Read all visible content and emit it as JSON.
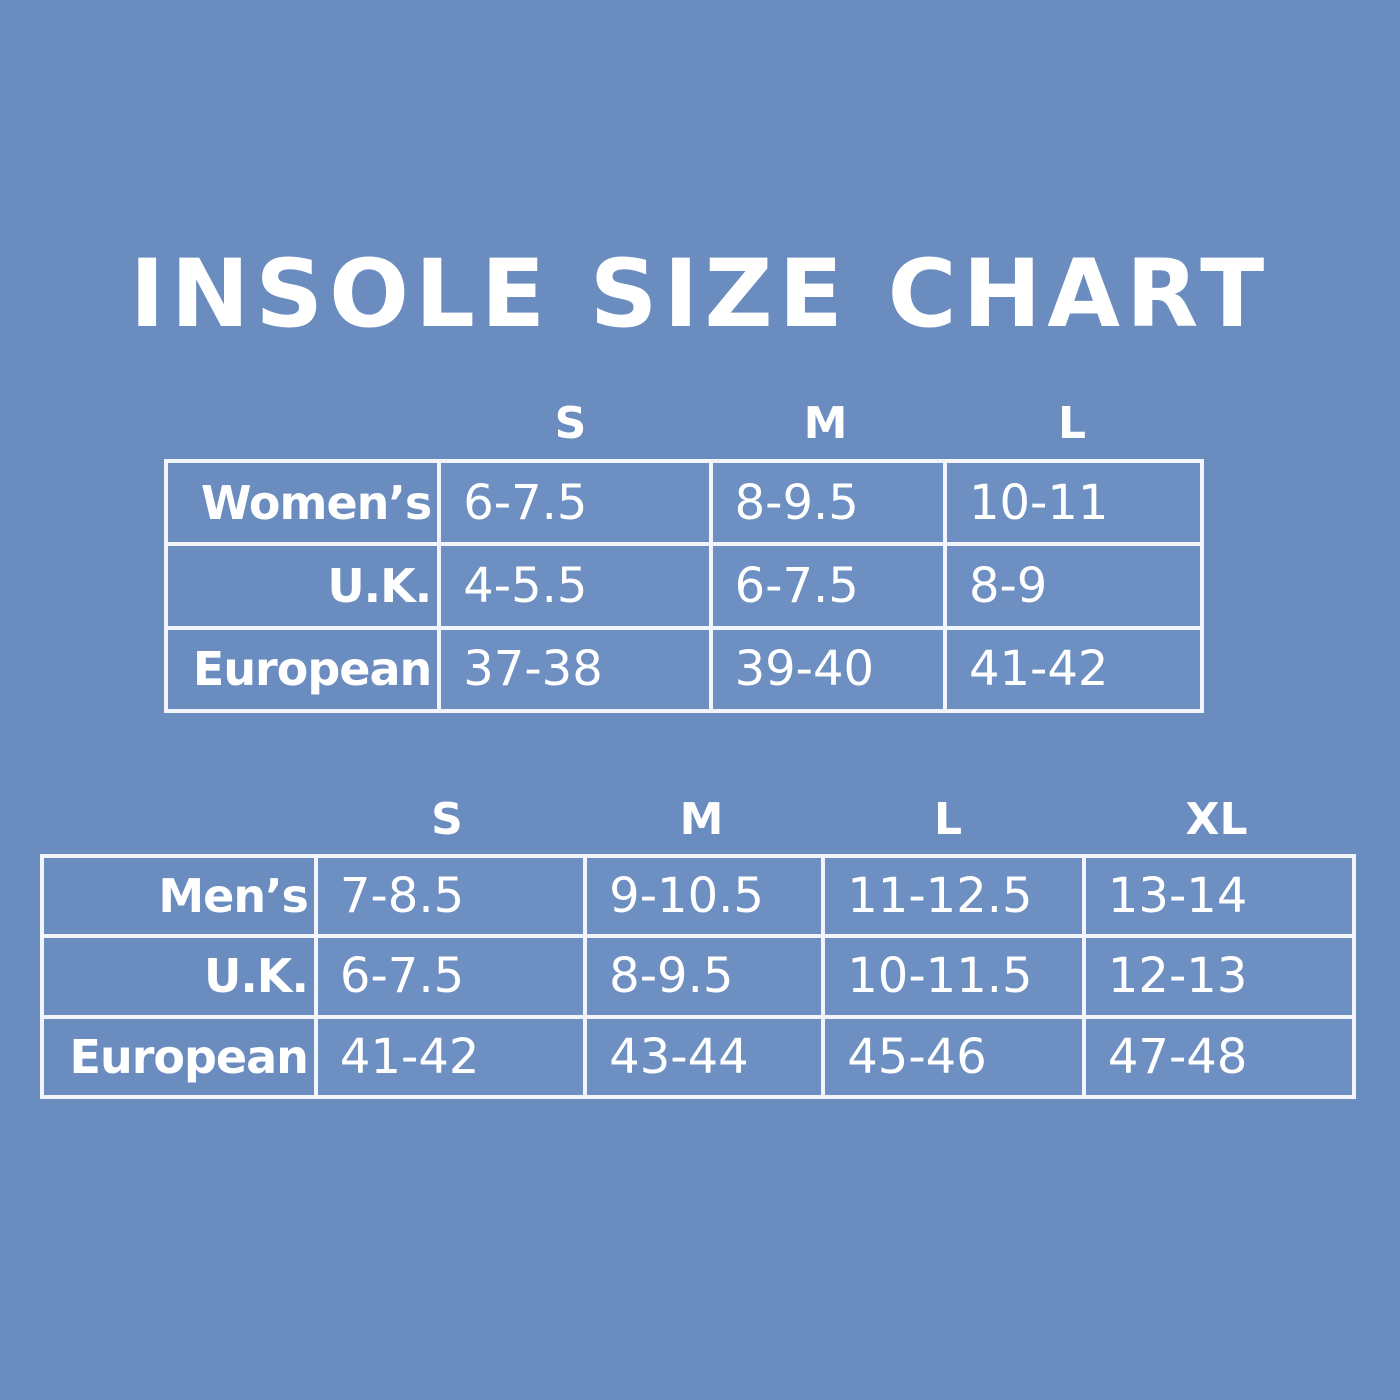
{
  "title": "INSOLE SIZE CHART",
  "womens": {
    "sizes": [
      "S",
      "M",
      "L"
    ],
    "rows": [
      {
        "label": "Women’s",
        "values": [
          "6-7.5",
          "8-9.5",
          "10-11"
        ]
      },
      {
        "label": "U.K.",
        "values": [
          "4-5.5",
          "6-7.5",
          "8-9"
        ]
      },
      {
        "label": "European",
        "values": [
          "37-38",
          "39-40",
          "41-42"
        ]
      }
    ]
  },
  "mens": {
    "sizes": [
      "S",
      "M",
      "L",
      "XL"
    ],
    "rows": [
      {
        "label": "Men’s",
        "values": [
          "7-8.5",
          "9-10.5",
          "11-12.5",
          "13-14"
        ]
      },
      {
        "label": "U.K.",
        "values": [
          "6-7.5",
          "8-9.5",
          "10-11.5",
          "12-13"
        ]
      },
      {
        "label": "European",
        "values": [
          "41-42",
          "43-44",
          "45-46",
          "47-48"
        ]
      }
    ]
  },
  "colors": {
    "background": "#6a8cbf",
    "text": "#ffffff"
  }
}
